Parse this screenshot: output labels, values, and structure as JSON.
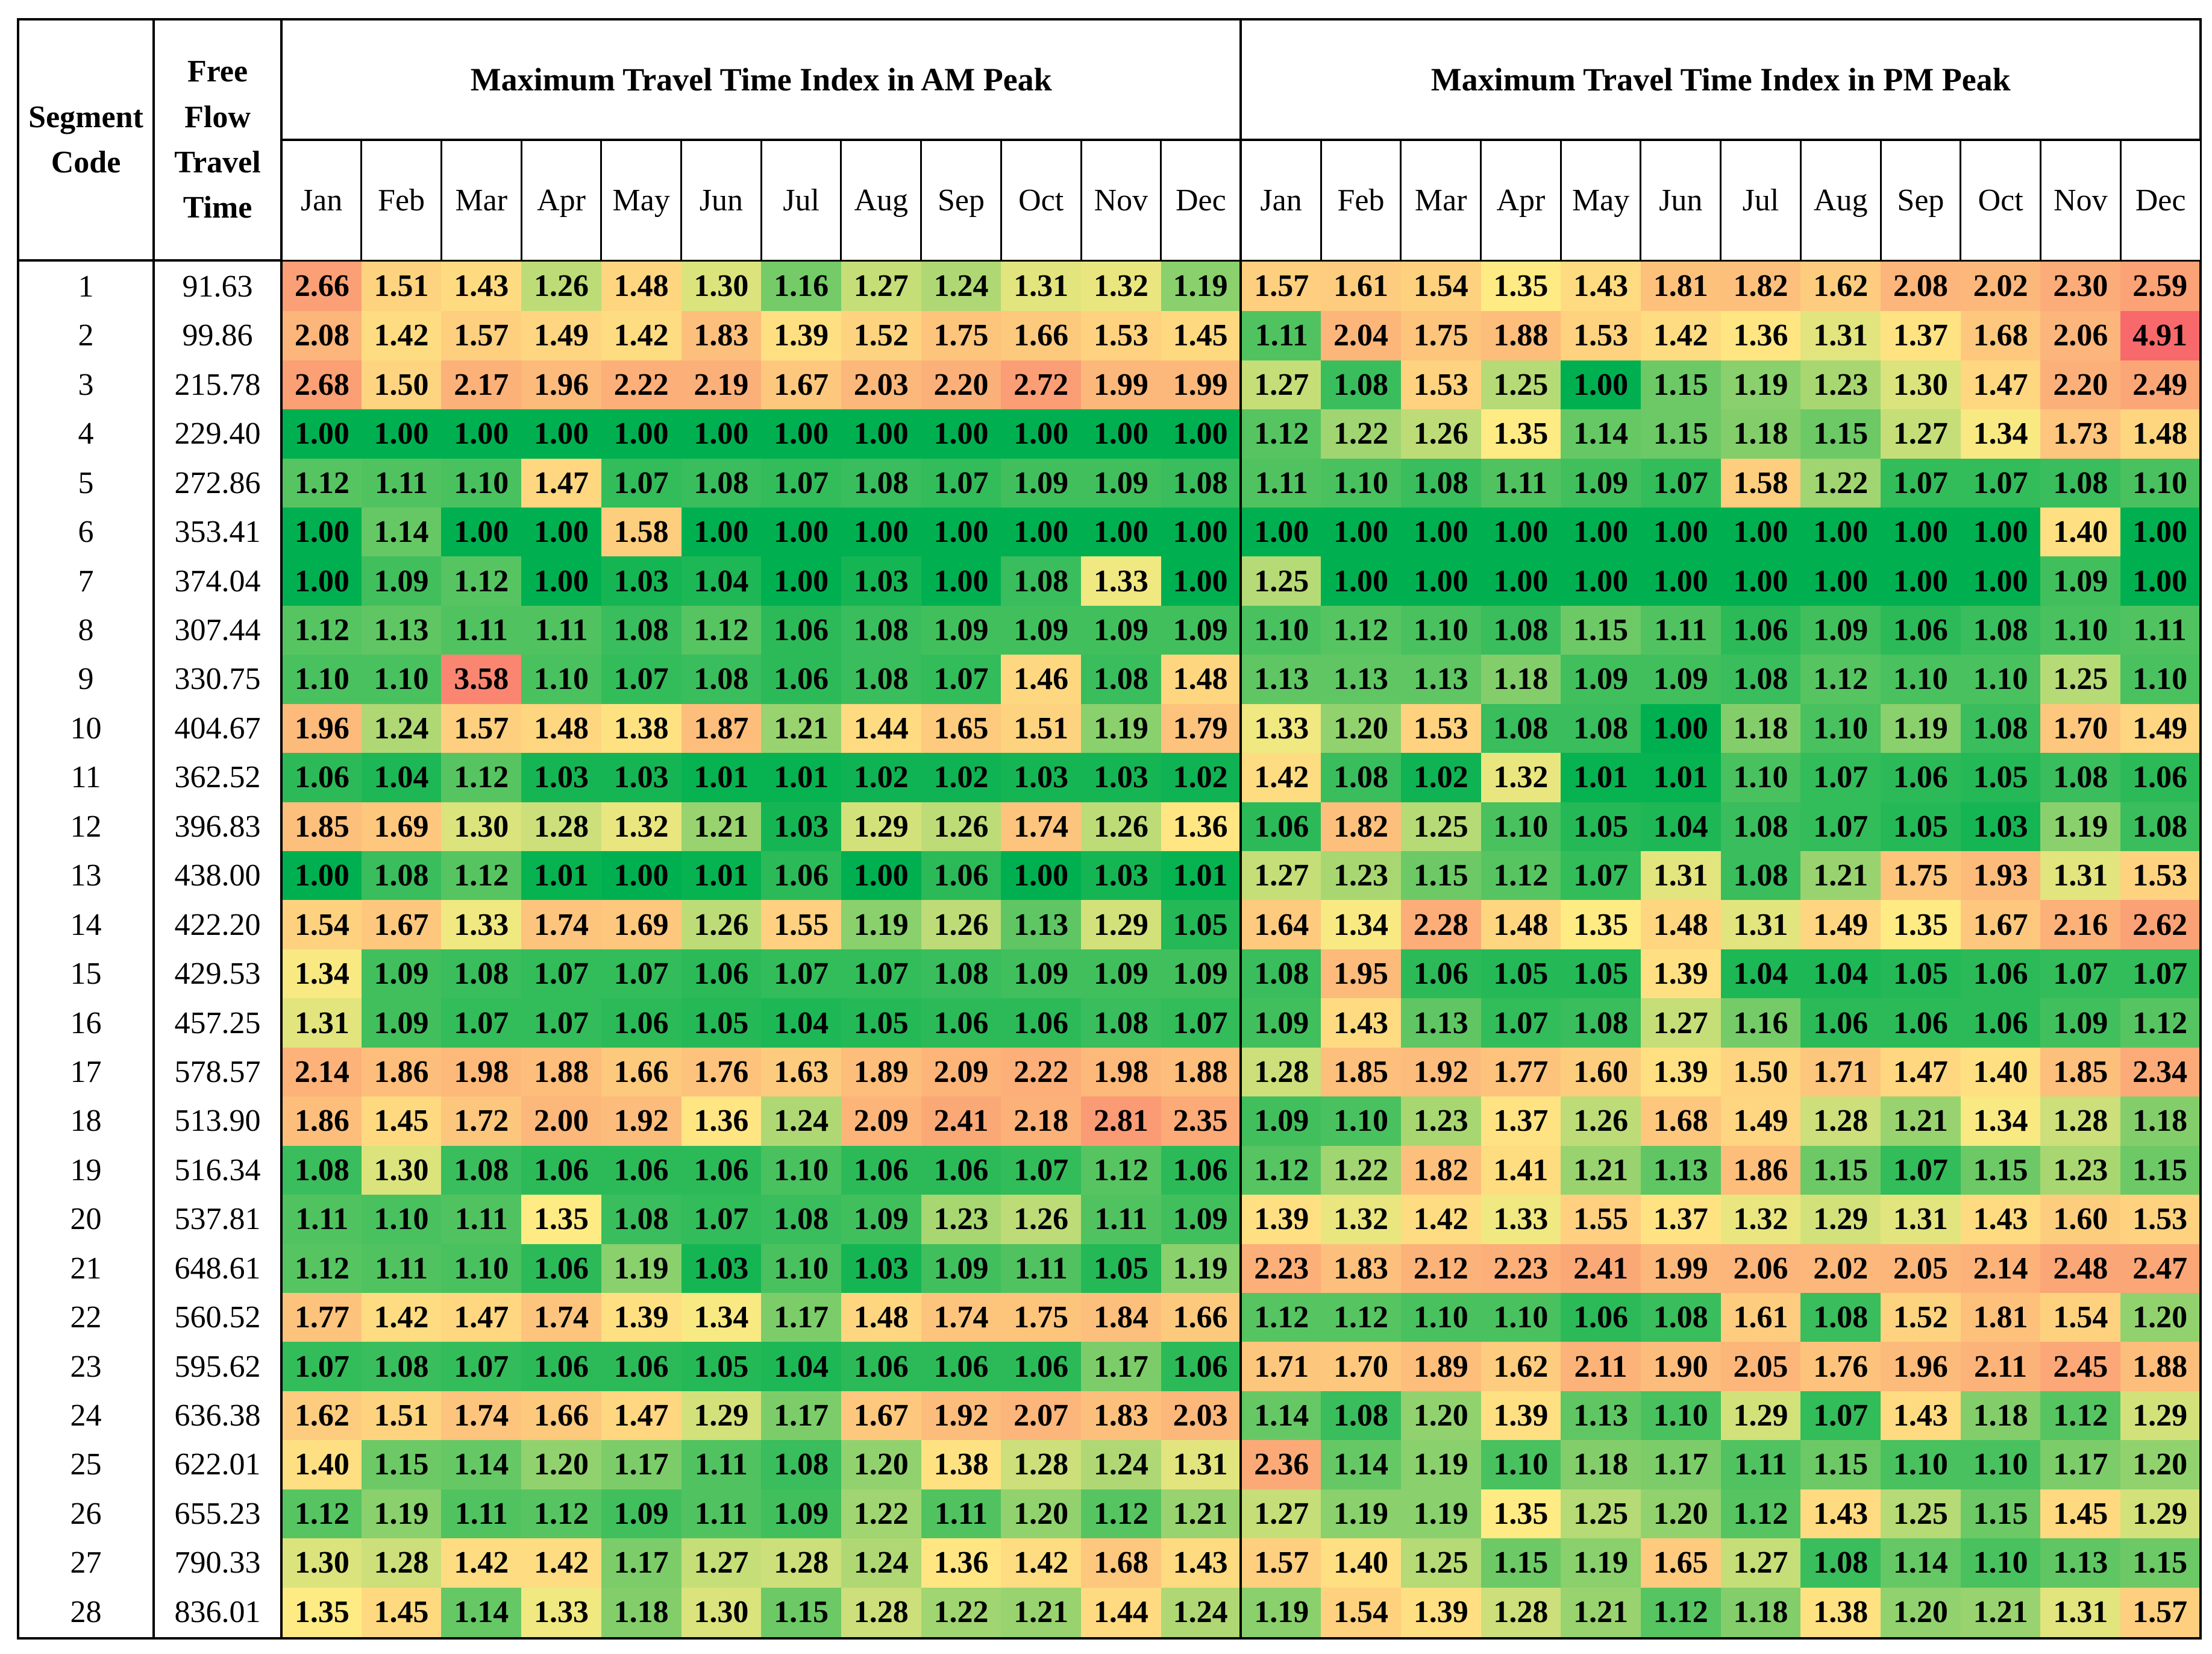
{
  "table": {
    "headers": {
      "segment_code": "Segment Code",
      "free_flow": [
        "Free",
        "Flow",
        "Travel",
        "Time"
      ],
      "am_group": "Maximum Travel Time Index in AM Peak",
      "pm_group": "Maximum Travel Time Index in PM Peak",
      "months": [
        "Jan",
        "Feb",
        "Mar",
        "Apr",
        "May",
        "Jun",
        "Jul",
        "Aug",
        "Sep",
        "Oct",
        "Nov",
        "Dec"
      ]
    },
    "color_scale": {
      "low": "#00b050",
      "mid": "#ffeb84",
      "high": "#f8696b"
    },
    "rows": [
      {
        "code": "1",
        "fftt": "91.63",
        "am": [
          "2.66",
          "1.51",
          "1.43",
          "1.26",
          "1.48",
          "1.30",
          "1.16",
          "1.27",
          "1.24",
          "1.31",
          "1.32",
          "1.19"
        ],
        "pm": [
          "1.57",
          "1.61",
          "1.54",
          "1.35",
          "1.43",
          "1.81",
          "1.82",
          "1.62",
          "2.08",
          "2.02",
          "2.30",
          "2.59"
        ]
      },
      {
        "code": "2",
        "fftt": "99.86",
        "am": [
          "2.08",
          "1.42",
          "1.57",
          "1.49",
          "1.42",
          "1.83",
          "1.39",
          "1.52",
          "1.75",
          "1.66",
          "1.53",
          "1.45"
        ],
        "pm": [
          "1.11",
          "2.04",
          "1.75",
          "1.88",
          "1.53",
          "1.42",
          "1.36",
          "1.31",
          "1.37",
          "1.68",
          "2.06",
          "4.91"
        ]
      },
      {
        "code": "3",
        "fftt": "215.78",
        "am": [
          "2.68",
          "1.50",
          "2.17",
          "1.96",
          "2.22",
          "2.19",
          "1.67",
          "2.03",
          "2.20",
          "2.72",
          "1.99",
          "1.99"
        ],
        "pm": [
          "1.27",
          "1.08",
          "1.53",
          "1.25",
          "1.00",
          "1.15",
          "1.19",
          "1.23",
          "1.30",
          "1.47",
          "2.20",
          "2.49"
        ]
      },
      {
        "code": "4",
        "fftt": "229.40",
        "am": [
          "1.00",
          "1.00",
          "1.00",
          "1.00",
          "1.00",
          "1.00",
          "1.00",
          "1.00",
          "1.00",
          "1.00",
          "1.00",
          "1.00"
        ],
        "pm": [
          "1.12",
          "1.22",
          "1.26",
          "1.35",
          "1.14",
          "1.15",
          "1.18",
          "1.15",
          "1.27",
          "1.34",
          "1.73",
          "1.48"
        ]
      },
      {
        "code": "5",
        "fftt": "272.86",
        "am": [
          "1.12",
          "1.11",
          "1.10",
          "1.47",
          "1.07",
          "1.08",
          "1.07",
          "1.08",
          "1.07",
          "1.09",
          "1.09",
          "1.08"
        ],
        "pm": [
          "1.11",
          "1.10",
          "1.08",
          "1.11",
          "1.09",
          "1.07",
          "1.58",
          "1.22",
          "1.07",
          "1.07",
          "1.08",
          "1.10"
        ]
      },
      {
        "code": "6",
        "fftt": "353.41",
        "am": [
          "1.00",
          "1.14",
          "1.00",
          "1.00",
          "1.58",
          "1.00",
          "1.00",
          "1.00",
          "1.00",
          "1.00",
          "1.00",
          "1.00"
        ],
        "pm": [
          "1.00",
          "1.00",
          "1.00",
          "1.00",
          "1.00",
          "1.00",
          "1.00",
          "1.00",
          "1.00",
          "1.00",
          "1.40",
          "1.00"
        ]
      },
      {
        "code": "7",
        "fftt": "374.04",
        "am": [
          "1.00",
          "1.09",
          "1.12",
          "1.00",
          "1.03",
          "1.04",
          "1.00",
          "1.03",
          "1.00",
          "1.08",
          "1.33",
          "1.00"
        ],
        "pm": [
          "1.25",
          "1.00",
          "1.00",
          "1.00",
          "1.00",
          "1.00",
          "1.00",
          "1.00",
          "1.00",
          "1.00",
          "1.09",
          "1.00"
        ]
      },
      {
        "code": "8",
        "fftt": "307.44",
        "am": [
          "1.12",
          "1.13",
          "1.11",
          "1.11",
          "1.08",
          "1.12",
          "1.06",
          "1.08",
          "1.09",
          "1.09",
          "1.09",
          "1.09"
        ],
        "pm": [
          "1.10",
          "1.12",
          "1.10",
          "1.08",
          "1.15",
          "1.11",
          "1.06",
          "1.09",
          "1.06",
          "1.08",
          "1.10",
          "1.11"
        ]
      },
      {
        "code": "9",
        "fftt": "330.75",
        "am": [
          "1.10",
          "1.10",
          "3.58",
          "1.10",
          "1.07",
          "1.08",
          "1.06",
          "1.08",
          "1.07",
          "1.46",
          "1.08",
          "1.48"
        ],
        "pm": [
          "1.13",
          "1.13",
          "1.13",
          "1.18",
          "1.09",
          "1.09",
          "1.08",
          "1.12",
          "1.10",
          "1.10",
          "1.25",
          "1.10"
        ]
      },
      {
        "code": "10",
        "fftt": "404.67",
        "am": [
          "1.96",
          "1.24",
          "1.57",
          "1.48",
          "1.38",
          "1.87",
          "1.21",
          "1.44",
          "1.65",
          "1.51",
          "1.19",
          "1.79"
        ],
        "pm": [
          "1.33",
          "1.20",
          "1.53",
          "1.08",
          "1.08",
          "1.00",
          "1.18",
          "1.10",
          "1.19",
          "1.08",
          "1.70",
          "1.49"
        ]
      },
      {
        "code": "11",
        "fftt": "362.52",
        "am": [
          "1.06",
          "1.04",
          "1.12",
          "1.03",
          "1.03",
          "1.01",
          "1.01",
          "1.02",
          "1.02",
          "1.03",
          "1.03",
          "1.02"
        ],
        "pm": [
          "1.42",
          "1.08",
          "1.02",
          "1.32",
          "1.01",
          "1.01",
          "1.10",
          "1.07",
          "1.06",
          "1.05",
          "1.08",
          "1.06"
        ]
      },
      {
        "code": "12",
        "fftt": "396.83",
        "am": [
          "1.85",
          "1.69",
          "1.30",
          "1.28",
          "1.32",
          "1.21",
          "1.03",
          "1.29",
          "1.26",
          "1.74",
          "1.26",
          "1.36"
        ],
        "pm": [
          "1.06",
          "1.82",
          "1.25",
          "1.10",
          "1.05",
          "1.04",
          "1.08",
          "1.07",
          "1.05",
          "1.03",
          "1.19",
          "1.08"
        ]
      },
      {
        "code": "13",
        "fftt": "438.00",
        "am": [
          "1.00",
          "1.08",
          "1.12",
          "1.01",
          "1.00",
          "1.01",
          "1.06",
          "1.00",
          "1.06",
          "1.00",
          "1.03",
          "1.01"
        ],
        "pm": [
          "1.27",
          "1.23",
          "1.15",
          "1.12",
          "1.07",
          "1.31",
          "1.08",
          "1.21",
          "1.75",
          "1.93",
          "1.31",
          "1.53"
        ]
      },
      {
        "code": "14",
        "fftt": "422.20",
        "am": [
          "1.54",
          "1.67",
          "1.33",
          "1.74",
          "1.69",
          "1.26",
          "1.55",
          "1.19",
          "1.26",
          "1.13",
          "1.29",
          "1.05"
        ],
        "pm": [
          "1.64",
          "1.34",
          "2.28",
          "1.48",
          "1.35",
          "1.48",
          "1.31",
          "1.49",
          "1.35",
          "1.67",
          "2.16",
          "2.62"
        ]
      },
      {
        "code": "15",
        "fftt": "429.53",
        "am": [
          "1.34",
          "1.09",
          "1.08",
          "1.07",
          "1.07",
          "1.06",
          "1.07",
          "1.07",
          "1.08",
          "1.09",
          "1.09",
          "1.09"
        ],
        "pm": [
          "1.08",
          "1.95",
          "1.06",
          "1.05",
          "1.05",
          "1.39",
          "1.04",
          "1.04",
          "1.05",
          "1.06",
          "1.07",
          "1.07"
        ]
      },
      {
        "code": "16",
        "fftt": "457.25",
        "am": [
          "1.31",
          "1.09",
          "1.07",
          "1.07",
          "1.06",
          "1.05",
          "1.04",
          "1.05",
          "1.06",
          "1.06",
          "1.08",
          "1.07"
        ],
        "pm": [
          "1.09",
          "1.43",
          "1.13",
          "1.07",
          "1.08",
          "1.27",
          "1.16",
          "1.06",
          "1.06",
          "1.06",
          "1.09",
          "1.12"
        ]
      },
      {
        "code": "17",
        "fftt": "578.57",
        "am": [
          "2.14",
          "1.86",
          "1.98",
          "1.88",
          "1.66",
          "1.76",
          "1.63",
          "1.89",
          "2.09",
          "2.22",
          "1.98",
          "1.88"
        ],
        "pm": [
          "1.28",
          "1.85",
          "1.92",
          "1.77",
          "1.60",
          "1.39",
          "1.50",
          "1.71",
          "1.47",
          "1.40",
          "1.85",
          "2.34"
        ]
      },
      {
        "code": "18",
        "fftt": "513.90",
        "am": [
          "1.86",
          "1.45",
          "1.72",
          "2.00",
          "1.92",
          "1.36",
          "1.24",
          "2.09",
          "2.41",
          "2.18",
          "2.81",
          "2.35"
        ],
        "pm": [
          "1.09",
          "1.10",
          "1.23",
          "1.37",
          "1.26",
          "1.68",
          "1.49",
          "1.28",
          "1.21",
          "1.34",
          "1.28",
          "1.18"
        ]
      },
      {
        "code": "19",
        "fftt": "516.34",
        "am": [
          "1.08",
          "1.30",
          "1.08",
          "1.06",
          "1.06",
          "1.06",
          "1.10",
          "1.06",
          "1.06",
          "1.07",
          "1.12",
          "1.06"
        ],
        "pm": [
          "1.12",
          "1.22",
          "1.82",
          "1.41",
          "1.21",
          "1.13",
          "1.86",
          "1.15",
          "1.07",
          "1.15",
          "1.23",
          "1.15"
        ]
      },
      {
        "code": "20",
        "fftt": "537.81",
        "am": [
          "1.11",
          "1.10",
          "1.11",
          "1.35",
          "1.08",
          "1.07",
          "1.08",
          "1.09",
          "1.23",
          "1.26",
          "1.11",
          "1.09"
        ],
        "pm": [
          "1.39",
          "1.32",
          "1.42",
          "1.33",
          "1.55",
          "1.37",
          "1.32",
          "1.29",
          "1.31",
          "1.43",
          "1.60",
          "1.53"
        ]
      },
      {
        "code": "21",
        "fftt": "648.61",
        "am": [
          "1.12",
          "1.11",
          "1.10",
          "1.06",
          "1.19",
          "1.03",
          "1.10",
          "1.03",
          "1.09",
          "1.11",
          "1.05",
          "1.19"
        ],
        "pm": [
          "2.23",
          "1.83",
          "2.12",
          "2.23",
          "2.41",
          "1.99",
          "2.06",
          "2.02",
          "2.05",
          "2.14",
          "2.48",
          "2.47"
        ]
      },
      {
        "code": "22",
        "fftt": "560.52",
        "am": [
          "1.77",
          "1.42",
          "1.47",
          "1.74",
          "1.39",
          "1.34",
          "1.17",
          "1.48",
          "1.74",
          "1.75",
          "1.84",
          "1.66"
        ],
        "pm": [
          "1.12",
          "1.12",
          "1.10",
          "1.10",
          "1.06",
          "1.08",
          "1.61",
          "1.08",
          "1.52",
          "1.81",
          "1.54",
          "1.20"
        ]
      },
      {
        "code": "23",
        "fftt": "595.62",
        "am": [
          "1.07",
          "1.08",
          "1.07",
          "1.06",
          "1.06",
          "1.05",
          "1.04",
          "1.06",
          "1.06",
          "1.06",
          "1.17",
          "1.06"
        ],
        "pm": [
          "1.71",
          "1.70",
          "1.89",
          "1.62",
          "2.11",
          "1.90",
          "2.05",
          "1.76",
          "1.96",
          "2.11",
          "2.45",
          "1.88"
        ]
      },
      {
        "code": "24",
        "fftt": "636.38",
        "am": [
          "1.62",
          "1.51",
          "1.74",
          "1.66",
          "1.47",
          "1.29",
          "1.17",
          "1.67",
          "1.92",
          "2.07",
          "1.83",
          "2.03"
        ],
        "pm": [
          "1.14",
          "1.08",
          "1.20",
          "1.39",
          "1.13",
          "1.10",
          "1.29",
          "1.07",
          "1.43",
          "1.18",
          "1.12",
          "1.29"
        ]
      },
      {
        "code": "25",
        "fftt": "622.01",
        "am": [
          "1.40",
          "1.15",
          "1.14",
          "1.20",
          "1.17",
          "1.11",
          "1.08",
          "1.20",
          "1.38",
          "1.28",
          "1.24",
          "1.31"
        ],
        "pm": [
          "2.36",
          "1.14",
          "1.19",
          "1.10",
          "1.18",
          "1.17",
          "1.11",
          "1.15",
          "1.10",
          "1.10",
          "1.17",
          "1.20"
        ]
      },
      {
        "code": "26",
        "fftt": "655.23",
        "am": [
          "1.12",
          "1.19",
          "1.11",
          "1.12",
          "1.09",
          "1.11",
          "1.09",
          "1.22",
          "1.11",
          "1.20",
          "1.12",
          "1.21"
        ],
        "pm": [
          "1.27",
          "1.19",
          "1.19",
          "1.35",
          "1.25",
          "1.20",
          "1.12",
          "1.43",
          "1.25",
          "1.15",
          "1.45",
          "1.29"
        ]
      },
      {
        "code": "27",
        "fftt": "790.33",
        "am": [
          "1.30",
          "1.28",
          "1.42",
          "1.42",
          "1.17",
          "1.27",
          "1.28",
          "1.24",
          "1.36",
          "1.42",
          "1.68",
          "1.43"
        ],
        "pm": [
          "1.57",
          "1.40",
          "1.25",
          "1.15",
          "1.19",
          "1.65",
          "1.27",
          "1.08",
          "1.14",
          "1.10",
          "1.13",
          "1.15"
        ]
      },
      {
        "code": "28",
        "fftt": "836.01",
        "am": [
          "1.35",
          "1.45",
          "1.14",
          "1.33",
          "1.18",
          "1.30",
          "1.15",
          "1.28",
          "1.22",
          "1.21",
          "1.44",
          "1.24"
        ],
        "pm": [
          "1.19",
          "1.54",
          "1.39",
          "1.28",
          "1.21",
          "1.12",
          "1.18",
          "1.38",
          "1.20",
          "1.21",
          "1.31",
          "1.57"
        ]
      }
    ]
  }
}
